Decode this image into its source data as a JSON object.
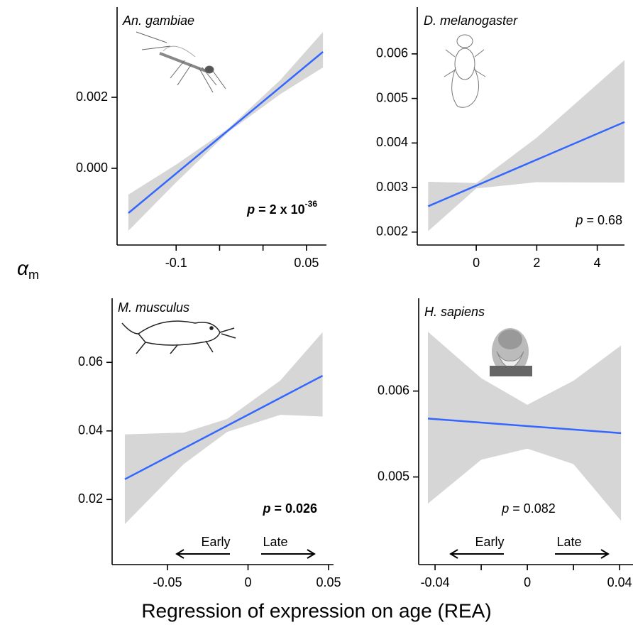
{
  "ylabel": {
    "symbol": "α",
    "subscript": "m"
  },
  "xlabel": "Regression of expression on age (REA)",
  "direction_labels": [
    "Early",
    "Late"
  ],
  "chart_data": [
    {
      "type": "line",
      "title": "An. gambiae",
      "color": "#3366ff",
      "band_color": "#d6d6d6",
      "x": [
        -0.155,
        0.069
      ],
      "values": [
        -0.00126,
        0.00328
      ],
      "band": {
        "x": [
          -0.155,
          -0.1,
          -0.04,
          0.02,
          0.069
        ],
        "lower": [
          -0.00176,
          -0.000395,
          0.00102,
          0.00209,
          0.00284
        ],
        "upper": [
          -0.00074,
          0.000105,
          0.00112,
          0.00249,
          0.00384
        ]
      },
      "xlim": [
        -0.168,
        0.073
      ],
      "ylim": [
        -0.00216,
        0.00454
      ],
      "xticks": [
        -0.1,
        {
          "value": -0.05,
          "label": null
        },
        {
          "value": 0,
          "label": null
        },
        0.05
      ],
      "yticks": [
        {
          "value": 0,
          "label": "0.000"
        },
        0.002
      ],
      "annotation": {
        "symbol": "p",
        "text": " = 2 x 10",
        "superscript": "-36",
        "bold": true
      }
    },
    {
      "type": "line",
      "title": "D. melanogaster",
      "color": "#3366ff",
      "band_color": "#d6d6d6",
      "x": [
        -1.59,
        4.9
      ],
      "values": [
        0.00258,
        0.00447
      ],
      "band": {
        "x": [
          -1.59,
          0,
          2,
          4.9
        ],
        "lower": [
          0.00202,
          0.00298,
          0.00312,
          0.00311
        ],
        "upper": [
          0.00313,
          0.0031,
          0.00412,
          0.00586
        ]
      },
      "xlim": [
        -1.95,
        4.9
      ],
      "ylim": [
        0.00171,
        0.00705
      ],
      "xticks": [
        0,
        2,
        4
      ],
      "yticks": [
        0.002,
        0.003,
        0.004,
        0.005,
        0.006
      ],
      "annotation": {
        "symbol": "p",
        "text": " = 0.68",
        "bold": false
      }
    },
    {
      "type": "line",
      "title": "M. musculus",
      "color": "#3366ff",
      "band_color": "#d6d6d6",
      "x": [
        -0.0765,
        0.0463
      ],
      "values": [
        0.0259,
        0.0561
      ],
      "band": {
        "x": [
          -0.0765,
          -0.04,
          -0.013,
          0.02,
          0.0463
        ],
        "lower": [
          0.0128,
          0.0303,
          0.0397,
          0.0447,
          0.0442
        ],
        "upper": [
          0.039,
          0.0395,
          0.0435,
          0.0547,
          0.0688
        ]
      },
      "xlim": [
        -0.0844,
        0.0531
      ],
      "ylim": [
        0.001,
        0.0787
      ],
      "xticks": [
        -0.05,
        0,
        0.05
      ],
      "yticks": [
        0.02,
        0.04,
        0.06
      ],
      "annotation": {
        "symbol": "p",
        "text": " = 0.026",
        "bold": true
      }
    },
    {
      "type": "line",
      "title": "H. sapiens",
      "color": "#3366ff",
      "band_color": "#d6d6d6",
      "x": [
        -0.0431,
        0.0406
      ],
      "values": [
        0.00568,
        0.00551
      ],
      "band": {
        "x": [
          -0.0431,
          -0.02,
          0,
          0.02,
          0.0406
        ],
        "lower": [
          0.00469,
          0.0052,
          0.00533,
          0.00515,
          0.00449
        ],
        "upper": [
          0.00669,
          0.00615,
          0.00584,
          0.00612,
          0.00653
        ]
      },
      "xlim": [
        -0.0471,
        0.0458
      ],
      "ylim": [
        0.00398,
        0.00708
      ],
      "xticks": [
        -0.04,
        {
          "value": -0.02,
          "label": null
        },
        0,
        {
          "value": 0.02,
          "label": null
        },
        0.04
      ],
      "yticks": [
        0.005,
        0.006
      ],
      "annotation": {
        "symbol": "p",
        "text": " = 0.082",
        "bold": false
      }
    }
  ]
}
